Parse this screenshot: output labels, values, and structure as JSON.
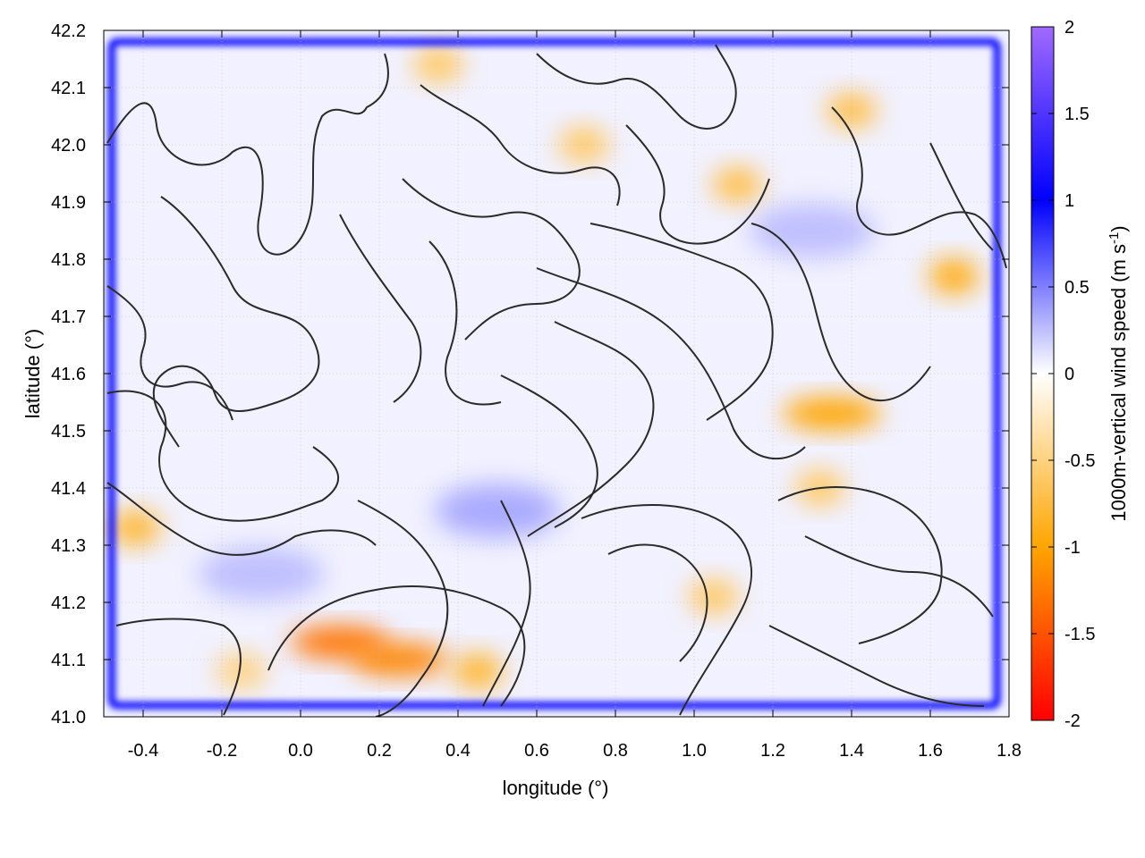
{
  "chart_data": {
    "type": "heatmap",
    "title": "",
    "xlabel": "longitude (°)",
    "ylabel": "latitude (°)",
    "colorbar_label": "1000m-vertical wind speed (m s",
    "colorbar_label_sup": "-1",
    "colorbar_label_end": ")",
    "xlim": [
      -0.5,
      1.8
    ],
    "ylim": [
      41.0,
      42.2
    ],
    "clim": [
      -2,
      2
    ],
    "x_ticks": [
      -0.4,
      -0.2,
      0.0,
      0.2,
      0.4,
      0.6,
      0.8,
      1.0,
      1.2,
      1.4,
      1.6,
      1.8
    ],
    "x_tick_labels": [
      "-0.4",
      "-0.2",
      "0.0",
      "0.2",
      "0.4",
      "0.6",
      "0.8",
      "1.0",
      "1.2",
      "1.4",
      "1.6",
      "1.8"
    ],
    "y_ticks": [
      41.0,
      41.1,
      41.2,
      41.3,
      41.4,
      41.5,
      41.6,
      41.7,
      41.8,
      41.9,
      42.0,
      42.1,
      42.2
    ],
    "y_tick_labels": [
      "41.0",
      "41.1",
      "41.2",
      "41.3",
      "41.4",
      "41.5",
      "41.6",
      "41.7",
      "41.8",
      "41.9",
      "42.0",
      "42.1",
      "42.2"
    ],
    "colorbar_ticks": [
      -2,
      -1.5,
      -1,
      -0.5,
      0,
      0.5,
      1,
      1.5,
      2
    ],
    "colorbar_tick_labels": [
      "-2",
      "-1.5",
      "-1",
      "-0.5",
      "0",
      "0.5",
      "1",
      "1.5",
      "2"
    ],
    "colormap": [
      {
        "value": -2,
        "color": "#ff0000"
      },
      {
        "value": -1,
        "color": "#ffa500"
      },
      {
        "value": 0,
        "color": "#ffffff"
      },
      {
        "value": 1,
        "color": "#0000ff"
      },
      {
        "value": 2,
        "color": "#a06aff"
      }
    ],
    "grid": true,
    "contours": true,
    "features": {
      "updraft_frame": {
        "x": [
          -0.48,
          1.77
        ],
        "y": [
          41.02,
          42.18
        ],
        "value": 1.0
      },
      "downdraft_cores": [
        {
          "x": 0.1,
          "y": 41.13,
          "value": -1.3
        },
        {
          "x": 0.25,
          "y": 41.1,
          "value": -1.2
        },
        {
          "x": 0.45,
          "y": 41.08,
          "value": -0.8
        },
        {
          "x": -0.42,
          "y": 41.33,
          "value": -0.8
        },
        {
          "x": 1.35,
          "y": 41.53,
          "value": -1.0
        },
        {
          "x": 1.66,
          "y": 41.77,
          "value": -0.9
        },
        {
          "x": 1.4,
          "y": 42.06,
          "value": -0.7
        },
        {
          "x": 1.11,
          "y": 41.93,
          "value": -0.7
        },
        {
          "x": 0.72,
          "y": 42.0,
          "value": -0.6
        },
        {
          "x": 0.35,
          "y": 42.14,
          "value": -0.6
        },
        {
          "x": 1.32,
          "y": 41.4,
          "value": -0.6
        },
        {
          "x": 1.05,
          "y": 41.21,
          "value": -0.6
        },
        {
          "x": -0.15,
          "y": 41.08,
          "value": -0.5
        }
      ],
      "updraft_patches": [
        {
          "x": 0.5,
          "y": 41.36,
          "value": 0.4
        },
        {
          "x": 1.3,
          "y": 41.85,
          "value": 0.3
        },
        {
          "x": -0.1,
          "y": 41.25,
          "value": 0.3
        }
      ]
    },
    "colors": {
      "frame": "#000000",
      "grid": "#bbbbbb",
      "contour": "#2a2a2a",
      "updraft_frame": "#0000ff"
    }
  }
}
